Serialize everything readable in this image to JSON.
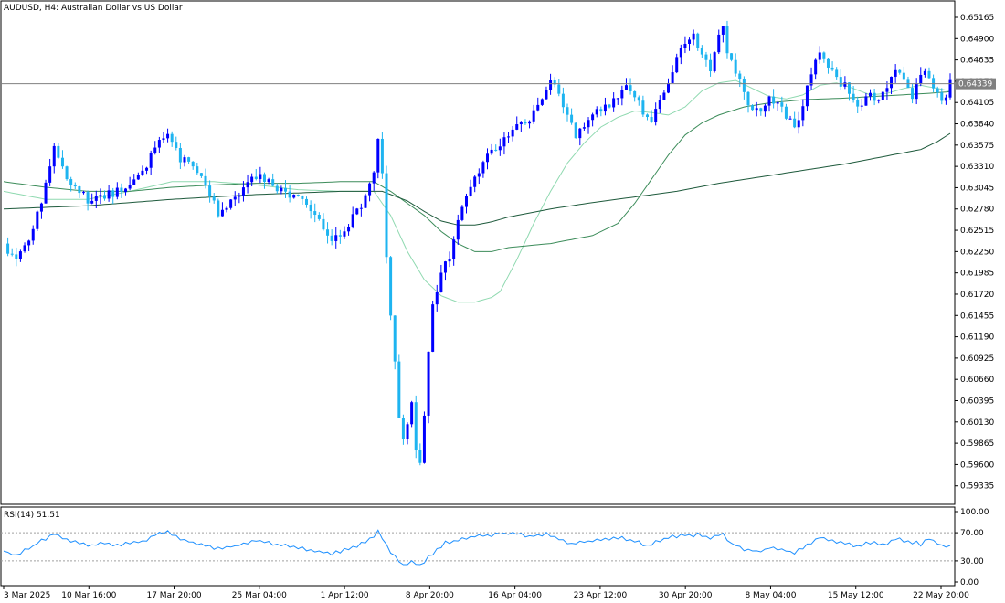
{
  "header": {
    "symbol": "AUDUSD, H4:",
    "description": "Australian Dollar vs US Dollar"
  },
  "rsi_panel": {
    "label": "RSI(14) 51.51"
  },
  "colors": {
    "bull_candle": "#0000ff",
    "bear_candle": "#1eb4f0",
    "ma_fast": "#8fd9b0",
    "ma_mid": "#3c8c5a",
    "ma_slow": "#1e5a3c",
    "rsi_line": "#1e90ff",
    "current_price_line": "#808080",
    "price_tag_bg": "#808080"
  },
  "chart_data": [
    {
      "type": "candlestick",
      "symbol": "AUDUSD",
      "timeframe": "H4",
      "y_ticks": [
        "0.65165",
        "0.64900",
        "0.64635",
        "0.64370",
        "0.64105",
        "0.63840",
        "0.63575",
        "0.63310",
        "0.63045",
        "0.62780",
        "0.62515",
        "0.62250",
        "0.61985",
        "0.61720",
        "0.61455",
        "0.61190",
        "0.60925",
        "0.60660",
        "0.60395",
        "0.60130",
        "0.59865",
        "0.59600",
        "0.59335"
      ],
      "ylim": [
        0.5915,
        0.6529
      ],
      "current_price": "0.64339",
      "x_ticks": [
        "3 Mar 2025",
        "10 Mar 16:00",
        "17 Mar 20:00",
        "25 Mar 04:00",
        "1 Apr 12:00",
        "8 Apr 20:00",
        "16 Apr 04:00",
        "23 Apr 12:00",
        "30 Apr 20:00",
        "8 May 04:00",
        "15 May 12:00",
        "22 May 20:00"
      ],
      "close_path": [
        [
          0,
          0.6235
        ],
        [
          3,
          0.6215
        ],
        [
          6,
          0.624
        ],
        [
          9,
          0.629
        ],
        [
          12,
          0.6355
        ],
        [
          15,
          0.632
        ],
        [
          18,
          0.63
        ],
        [
          21,
          0.6285
        ],
        [
          24,
          0.6295
        ],
        [
          27,
          0.63
        ],
        [
          30,
          0.631
        ],
        [
          33,
          0.632
        ],
        [
          36,
          0.6355
        ],
        [
          39,
          0.637
        ],
        [
          42,
          0.634
        ],
        [
          45,
          0.633
        ],
        [
          48,
          0.6305
        ],
        [
          51,
          0.6275
        ],
        [
          54,
          0.6285
        ],
        [
          57,
          0.63
        ],
        [
          60,
          0.632
        ],
        [
          63,
          0.631
        ],
        [
          66,
          0.63
        ],
        [
          69,
          0.6295
        ],
        [
          72,
          0.628
        ],
        [
          75,
          0.626
        ],
        [
          78,
          0.624
        ],
        [
          81,
          0.625
        ],
        [
          84,
          0.6275
        ],
        [
          87,
          0.6305
        ],
        [
          88,
          0.6325
        ],
        [
          89,
          0.637
        ],
        [
          90,
          0.632
        ],
        [
          91,
          0.622
        ],
        [
          92,
          0.615
        ],
        [
          93,
          0.609
        ],
        [
          94,
          0.602
        ],
        [
          95,
          0.599
        ],
        [
          96,
          0.601
        ],
        [
          97,
          0.604
        ],
        [
          98,
          0.598
        ],
        [
          99,
          0.596
        ],
        [
          100,
          0.602
        ],
        [
          101,
          0.61
        ],
        [
          102,
          0.616
        ],
        [
          103,
          0.618
        ],
        [
          104,
          0.62
        ],
        [
          106,
          0.622
        ],
        [
          108,
          0.627
        ],
        [
          110,
          0.63
        ],
        [
          112,
          0.632
        ],
        [
          114,
          0.6335
        ],
        [
          116,
          0.635
        ],
        [
          118,
          0.636
        ],
        [
          120,
          0.637
        ],
        [
          122,
          0.6385
        ],
        [
          124,
          0.638
        ],
        [
          126,
          0.64
        ],
        [
          128,
          0.6415
        ],
        [
          130,
          0.6435
        ],
        [
          132,
          0.642
        ],
        [
          134,
          0.639
        ],
        [
          136,
          0.637
        ],
        [
          138,
          0.6385
        ],
        [
          140,
          0.6395
        ],
        [
          142,
          0.64
        ],
        [
          144,
          0.641
        ],
        [
          146,
          0.642
        ],
        [
          148,
          0.643
        ],
        [
          150,
          0.642
        ],
        [
          152,
          0.6395
        ],
        [
          154,
          0.639
        ],
        [
          156,
          0.641
        ],
        [
          158,
          0.644
        ],
        [
          160,
          0.6465
        ],
        [
          162,
          0.648
        ],
        [
          164,
          0.6495
        ],
        [
          166,
          0.647
        ],
        [
          168,
          0.6455
        ],
        [
          170,
          0.6495
        ],
        [
          171,
          0.651
        ],
        [
          172,
          0.6475
        ],
        [
          174,
          0.645
        ],
        [
          176,
          0.642
        ],
        [
          178,
          0.64
        ],
        [
          180,
          0.6405
        ],
        [
          182,
          0.6415
        ],
        [
          184,
          0.641
        ],
        [
          186,
          0.6395
        ],
        [
          188,
          0.6375
        ],
        [
          190,
          0.641
        ],
        [
          192,
          0.645
        ],
        [
          194,
          0.6475
        ],
        [
          196,
          0.646
        ],
        [
          198,
          0.644
        ],
        [
          200,
          0.643
        ],
        [
          202,
          0.6415
        ],
        [
          204,
          0.6405
        ],
        [
          206,
          0.642
        ],
        [
          208,
          0.641
        ],
        [
          210,
          0.643
        ],
        [
          212,
          0.6455
        ],
        [
          214,
          0.644
        ],
        [
          216,
          0.642
        ],
        [
          218,
          0.645
        ],
        [
          220,
          0.6445
        ],
        [
          222,
          0.642
        ],
        [
          224,
          0.6415
        ],
        [
          225,
          0.6434
        ]
      ],
      "moving_averages": [
        {
          "role": "fast",
          "path": [
            [
              0,
              0.63
            ],
            [
              10,
              0.629
            ],
            [
              20,
              0.629
            ],
            [
              30,
              0.63
            ],
            [
              40,
              0.6312
            ],
            [
              50,
              0.6312
            ],
            [
              60,
              0.6308
            ],
            [
              70,
              0.6302
            ],
            [
              80,
              0.63
            ],
            [
              88,
              0.63
            ],
            [
              92,
              0.627
            ],
            [
              96,
              0.6225
            ],
            [
              100,
              0.619
            ],
            [
              104,
              0.617
            ],
            [
              108,
              0.6162
            ],
            [
              112,
              0.6162
            ],
            [
              116,
              0.6168
            ],
            [
              118,
              0.6175
            ],
            [
              122,
              0.6215
            ],
            [
              126,
              0.626
            ],
            [
              130,
              0.63
            ],
            [
              134,
              0.6335
            ],
            [
              138,
              0.636
            ],
            [
              142,
              0.638
            ],
            [
              146,
              0.6392
            ],
            [
              150,
              0.64
            ],
            [
              154,
              0.6398
            ],
            [
              158,
              0.6395
            ],
            [
              162,
              0.6405
            ],
            [
              166,
              0.6425
            ],
            [
              170,
              0.6435
            ],
            [
              174,
              0.6438
            ],
            [
              178,
              0.6428
            ],
            [
              182,
              0.6418
            ],
            [
              186,
              0.6415
            ],
            [
              190,
              0.642
            ],
            [
              194,
              0.6432
            ],
            [
              198,
              0.6435
            ],
            [
              202,
              0.6428
            ],
            [
              206,
              0.642
            ],
            [
              210,
              0.6422
            ],
            [
              214,
              0.6428
            ],
            [
              218,
              0.6432
            ],
            [
              222,
              0.6428
            ],
            [
              225,
              0.6425
            ]
          ]
        },
        {
          "role": "mid",
          "path": [
            [
              0,
              0.6312
            ],
            [
              10,
              0.6305
            ],
            [
              20,
              0.63
            ],
            [
              30,
              0.63
            ],
            [
              40,
              0.6305
            ],
            [
              50,
              0.6308
            ],
            [
              60,
              0.631
            ],
            [
              70,
              0.631
            ],
            [
              80,
              0.6312
            ],
            [
              88,
              0.6312
            ],
            [
              92,
              0.63
            ],
            [
              96,
              0.6285
            ],
            [
              100,
              0.627
            ],
            [
              104,
              0.625
            ],
            [
              108,
              0.6235
            ],
            [
              112,
              0.6225
            ],
            [
              116,
              0.6225
            ],
            [
              120,
              0.623
            ],
            [
              130,
              0.6235
            ],
            [
              140,
              0.6245
            ],
            [
              146,
              0.626
            ],
            [
              150,
              0.6285
            ],
            [
              154,
              0.6315
            ],
            [
              158,
              0.6345
            ],
            [
              162,
              0.637
            ],
            [
              166,
              0.6385
            ],
            [
              170,
              0.6395
            ],
            [
              176,
              0.6405
            ],
            [
              182,
              0.641
            ],
            [
              190,
              0.6414
            ],
            [
              200,
              0.6416
            ],
            [
              210,
              0.6419
            ],
            [
              220,
              0.6422
            ],
            [
              225,
              0.6424
            ]
          ]
        },
        {
          "role": "slow",
          "path": [
            [
              0,
              0.6278
            ],
            [
              20,
              0.6282
            ],
            [
              40,
              0.629
            ],
            [
              60,
              0.6296
            ],
            [
              80,
              0.63
            ],
            [
              90,
              0.63
            ],
            [
              96,
              0.6288
            ],
            [
              100,
              0.6275
            ],
            [
              104,
              0.6263
            ],
            [
              108,
              0.6258
            ],
            [
              112,
              0.6258
            ],
            [
              116,
              0.6262
            ],
            [
              120,
              0.6268
            ],
            [
              130,
              0.6278
            ],
            [
              140,
              0.6286
            ],
            [
              150,
              0.6293
            ],
            [
              160,
              0.63
            ],
            [
              170,
              0.631
            ],
            [
              180,
              0.6318
            ],
            [
              190,
              0.6326
            ],
            [
              200,
              0.6334
            ],
            [
              210,
              0.6344
            ],
            [
              218,
              0.6352
            ],
            [
              222,
              0.6362
            ],
            [
              225,
              0.6372
            ]
          ]
        }
      ]
    },
    {
      "type": "line",
      "name": "RSI(14)",
      "value": 51.51,
      "y_ticks": [
        "100.00",
        "70.00",
        "30.00",
        "0.00"
      ],
      "ylim": [
        0,
        100
      ],
      "levels": [
        70,
        30
      ],
      "path": [
        [
          0,
          44
        ],
        [
          3,
          38
        ],
        [
          6,
          48
        ],
        [
          9,
          58
        ],
        [
          12,
          70
        ],
        [
          15,
          60
        ],
        [
          18,
          57
        ],
        [
          21,
          52
        ],
        [
          24,
          55
        ],
        [
          27,
          53
        ],
        [
          30,
          55
        ],
        [
          33,
          57
        ],
        [
          36,
          68
        ],
        [
          39,
          72
        ],
        [
          42,
          61
        ],
        [
          45,
          56
        ],
        [
          48,
          52
        ],
        [
          51,
          47
        ],
        [
          54,
          50
        ],
        [
          57,
          53
        ],
        [
          60,
          58
        ],
        [
          63,
          55
        ],
        [
          66,
          52
        ],
        [
          69,
          50
        ],
        [
          72,
          46
        ],
        [
          75,
          43
        ],
        [
          78,
          40
        ],
        [
          81,
          45
        ],
        [
          84,
          52
        ],
        [
          87,
          61
        ],
        [
          89,
          72
        ],
        [
          91,
          52
        ],
        [
          93,
          35
        ],
        [
          95,
          24
        ],
        [
          97,
          30
        ],
        [
          99,
          22
        ],
        [
          101,
          36
        ],
        [
          103,
          46
        ],
        [
          105,
          56
        ],
        [
          108,
          60
        ],
        [
          111,
          64
        ],
        [
          114,
          66
        ],
        [
          117,
          68
        ],
        [
          120,
          70
        ],
        [
          123,
          67
        ],
        [
          126,
          65
        ],
        [
          129,
          68
        ],
        [
          132,
          62
        ],
        [
          135,
          55
        ],
        [
          138,
          57
        ],
        [
          141,
          59
        ],
        [
          144,
          61
        ],
        [
          147,
          63
        ],
        [
          150,
          58
        ],
        [
          153,
          52
        ],
        [
          156,
          60
        ],
        [
          159,
          64
        ],
        [
          162,
          66
        ],
        [
          165,
          67
        ],
        [
          168,
          62
        ],
        [
          171,
          68
        ],
        [
          173,
          55
        ],
        [
          176,
          47
        ],
        [
          179,
          44
        ],
        [
          182,
          48
        ],
        [
          185,
          45
        ],
        [
          188,
          42
        ],
        [
          191,
          52
        ],
        [
          194,
          64
        ],
        [
          197,
          58
        ],
        [
          200,
          55
        ],
        [
          203,
          50
        ],
        [
          206,
          56
        ],
        [
          209,
          52
        ],
        [
          212,
          62
        ],
        [
          215,
          58
        ],
        [
          218,
          54
        ],
        [
          220,
          62
        ],
        [
          222,
          55
        ],
        [
          224,
          50
        ],
        [
          225,
          51.5
        ]
      ]
    }
  ]
}
